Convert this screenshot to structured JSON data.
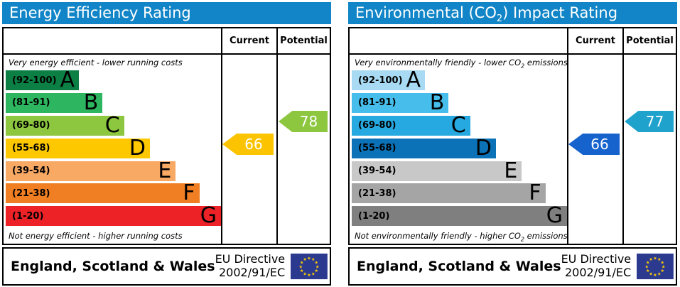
{
  "colors": {
    "header_bg": "#1185c7",
    "flag_bg": "#2b3a8f",
    "star_color": "#ffcc00",
    "border": "#000000"
  },
  "panels": {
    "energy": {
      "title_pre": "Energy Efficiency Rating",
      "title_sub": "",
      "title_post": "",
      "col_current": "Current",
      "col_potential": "Potential",
      "top_note_pre": "Very energy efficient - lower running costs",
      "top_note_sub": "",
      "top_note_post": "",
      "bottom_note_pre": "Not energy efficient - higher running costs",
      "bottom_note_sub": "",
      "bottom_note_post": "",
      "bands": [
        {
          "range": "(92-100)",
          "letter": "A",
          "color": "#0c8044",
          "width_pct": 34
        },
        {
          "range": "(81-91)",
          "letter": "B",
          "color": "#2eb560",
          "width_pct": 45
        },
        {
          "range": "(69-80)",
          "letter": "C",
          "color": "#8dc63f",
          "width_pct": 55
        },
        {
          "range": "(55-68)",
          "letter": "D",
          "color": "#fdc800",
          "width_pct": 67
        },
        {
          "range": "(39-54)",
          "letter": "E",
          "color": "#f8a964",
          "width_pct": 79
        },
        {
          "range": "(21-38)",
          "letter": "F",
          "color": "#f07e22",
          "width_pct": 90
        },
        {
          "range": "(1-20)",
          "letter": "G",
          "color": "#ec2227",
          "width_pct": 100
        }
      ],
      "current": {
        "value": "66",
        "color": "#fcc300",
        "band_index": 3
      },
      "potential": {
        "value": "78",
        "color": "#8dc63f",
        "band_index": 2
      },
      "footer_region": "England, Scotland & Wales",
      "footer_directive_line1": "EU Directive",
      "footer_directive_line2": "2002/91/EC"
    },
    "co2": {
      "title_pre": "Environmental (CO",
      "title_sub": "2",
      "title_post": ") Impact Rating",
      "col_current": "Current",
      "col_potential": "Potential",
      "top_note_pre": "Very environmentally friendly - lower CO",
      "top_note_sub": "2",
      "top_note_post": " emissions",
      "bottom_note_pre": "Not environmentally friendly - higher CO",
      "bottom_note_sub": "2",
      "bottom_note_post": " emissions",
      "bands": [
        {
          "range": "(92-100)",
          "letter": "A",
          "color": "#a8dbf3",
          "width_pct": 34
        },
        {
          "range": "(81-91)",
          "letter": "B",
          "color": "#46bdea",
          "width_pct": 45
        },
        {
          "range": "(69-80)",
          "letter": "C",
          "color": "#26a9e0",
          "width_pct": 55
        },
        {
          "range": "(55-68)",
          "letter": "D",
          "color": "#0b72b8",
          "width_pct": 67
        },
        {
          "range": "(39-54)",
          "letter": "E",
          "color": "#c8c8c8",
          "width_pct": 79
        },
        {
          "range": "(21-38)",
          "letter": "F",
          "color": "#a5a5a5",
          "width_pct": 90
        },
        {
          "range": "(1-20)",
          "letter": "G",
          "color": "#7f7f7f",
          "width_pct": 100
        }
      ],
      "current": {
        "value": "66",
        "color": "#1663cd",
        "band_index": 3
      },
      "potential": {
        "value": "77",
        "color": "#1fa3cd",
        "band_index": 2
      },
      "footer_region": "England, Scotland & Wales",
      "footer_directive_line1": "EU Directive",
      "footer_directive_line2": "2002/91/EC"
    }
  },
  "chart_data": [
    {
      "type": "bar",
      "title": "Energy Efficiency Rating",
      "categories": [
        "A",
        "B",
        "C",
        "D",
        "E",
        "F",
        "G"
      ],
      "band_ranges": [
        "92-100",
        "81-91",
        "69-80",
        "55-68",
        "39-54",
        "21-38",
        "1-20"
      ],
      "band_width_pct": [
        34,
        45,
        55,
        67,
        79,
        90,
        100
      ],
      "series": [
        {
          "name": "Current",
          "value": 66,
          "band": "D"
        },
        {
          "name": "Potential",
          "value": 78,
          "band": "C"
        }
      ],
      "scale": [
        1,
        100
      ],
      "annotations": [
        "Very energy efficient - lower running costs",
        "Not energy efficient - higher running costs"
      ],
      "footer": "England, Scotland & Wales — EU Directive 2002/91/EC"
    },
    {
      "type": "bar",
      "title": "Environmental (CO2) Impact Rating",
      "categories": [
        "A",
        "B",
        "C",
        "D",
        "E",
        "F",
        "G"
      ],
      "band_ranges": [
        "92-100",
        "81-91",
        "69-80",
        "55-68",
        "39-54",
        "21-38",
        "1-20"
      ],
      "band_width_pct": [
        34,
        45,
        55,
        67,
        79,
        90,
        100
      ],
      "series": [
        {
          "name": "Current",
          "value": 66,
          "band": "D"
        },
        {
          "name": "Potential",
          "value": 77,
          "band": "C"
        }
      ],
      "scale": [
        1,
        100
      ],
      "annotations": [
        "Very environmentally friendly - lower CO2 emissions",
        "Not environmentally friendly - higher CO2 emissions"
      ],
      "footer": "England, Scotland & Wales — EU Directive 2002/91/EC"
    }
  ]
}
